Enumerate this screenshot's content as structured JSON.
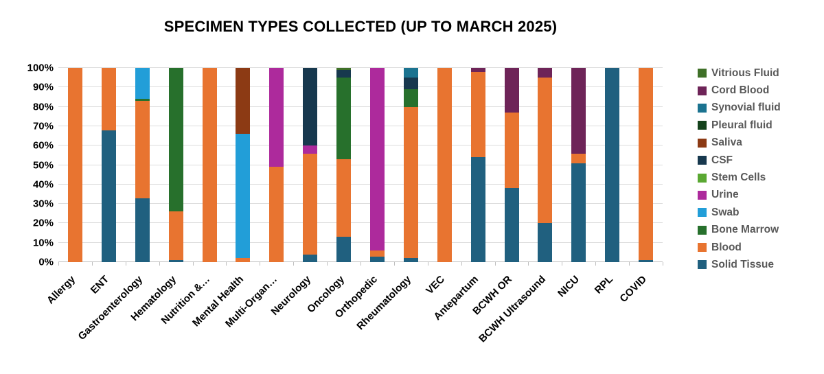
{
  "title": "SPECIMEN TYPES COLLECTED (UP TO MARCH 2025)",
  "chart_data": {
    "type": "bar",
    "subtype": "stacked-100-percent",
    "title": "SPECIMEN TYPES COLLECTED (UP TO MARCH 2025)",
    "xlabel": "",
    "ylabel": "",
    "ylim": [
      0,
      100
    ],
    "grid": true,
    "legend_position": "right",
    "y_ticks": [
      "0%",
      "10%",
      "20%",
      "30%",
      "40%",
      "50%",
      "60%",
      "70%",
      "80%",
      "90%",
      "100%"
    ],
    "categories": [
      "Allergy",
      "ENT",
      "Gastroenterology",
      "Hematology",
      "Nutrition &…",
      "Mental Health",
      "Multi-Organ…",
      "Neurology",
      "Oncology",
      "Orthopedic",
      "Rheumatology",
      "VEC",
      "Antepartum",
      "BCWH OR",
      "BCWH Ultrasound",
      "NICU",
      "RPL",
      "COVID"
    ],
    "series_bottom_to_top": [
      {
        "name": "Solid Tissue",
        "color": "#20607F",
        "values": [
          0,
          68,
          33,
          1,
          0,
          0,
          0,
          4,
          13,
          3,
          2,
          0,
          54,
          38,
          20,
          51,
          100,
          1
        ]
      },
      {
        "name": "Blood",
        "color": "#E87430",
        "values": [
          100,
          32,
          50,
          25,
          100,
          2,
          49,
          52,
          40,
          3,
          78,
          100,
          44,
          39,
          75,
          5,
          0,
          99
        ]
      },
      {
        "name": "Bone Marrow",
        "color": "#27702C",
        "values": [
          0,
          0,
          1,
          74,
          0,
          0,
          0,
          0,
          42,
          0,
          9,
          0,
          0,
          0,
          0,
          0,
          0,
          0
        ]
      },
      {
        "name": "Swab",
        "color": "#229ED8",
        "values": [
          0,
          0,
          16,
          0,
          0,
          64,
          0,
          0,
          0,
          0,
          0,
          0,
          0,
          0,
          0,
          0,
          0,
          0
        ]
      },
      {
        "name": "Urine",
        "color": "#AD2A9C",
        "values": [
          0,
          0,
          0,
          0,
          0,
          0,
          51,
          4,
          0,
          94,
          0,
          0,
          0,
          0,
          0,
          0,
          0,
          0
        ]
      },
      {
        "name": "Stem Cells",
        "color": "#5AA832",
        "values": [
          0,
          0,
          0,
          0,
          0,
          0,
          0,
          0,
          0,
          0,
          0,
          0,
          0,
          0,
          0,
          0,
          0,
          0
        ]
      },
      {
        "name": "CSF",
        "color": "#17384E",
        "values": [
          0,
          0,
          0,
          0,
          0,
          0,
          0,
          40,
          4,
          0,
          6,
          0,
          0,
          0,
          0,
          0,
          0,
          0
        ]
      },
      {
        "name": "Saliva",
        "color": "#8C3A14",
        "values": [
          0,
          0,
          0,
          0,
          0,
          34,
          0,
          0,
          0,
          0,
          0,
          0,
          0,
          0,
          0,
          0,
          0,
          0
        ]
      },
      {
        "name": "Pleural fluid",
        "color": "#14421C",
        "values": [
          0,
          0,
          0,
          0,
          0,
          0,
          0,
          0,
          0,
          0,
          0,
          0,
          0,
          0,
          0,
          0,
          0,
          0
        ]
      },
      {
        "name": "Synovial fluid",
        "color": "#1B7390",
        "values": [
          0,
          0,
          0,
          0,
          0,
          0,
          0,
          0,
          0,
          0,
          5,
          0,
          0,
          0,
          0,
          0,
          0,
          0
        ]
      },
      {
        "name": "Cord Blood",
        "color": "#6E2458",
        "values": [
          0,
          0,
          0,
          0,
          0,
          0,
          0,
          0,
          0,
          0,
          0,
          0,
          2,
          23,
          5,
          44,
          0,
          0
        ]
      },
      {
        "name": "Vitrious Fluid",
        "color": "#3F7028",
        "values": [
          0,
          0,
          0,
          0,
          0,
          0,
          0,
          0,
          1,
          0,
          0,
          0,
          0,
          0,
          0,
          0,
          0,
          0
        ]
      }
    ],
    "legend_top_to_bottom": [
      "Vitrious Fluid",
      "Cord Blood",
      "Synovial fluid",
      "Pleural fluid",
      "Saliva",
      "CSF",
      "Stem Cells",
      "Urine",
      "Swab",
      "Bone Marrow",
      "Blood",
      "Solid Tissue"
    ]
  }
}
